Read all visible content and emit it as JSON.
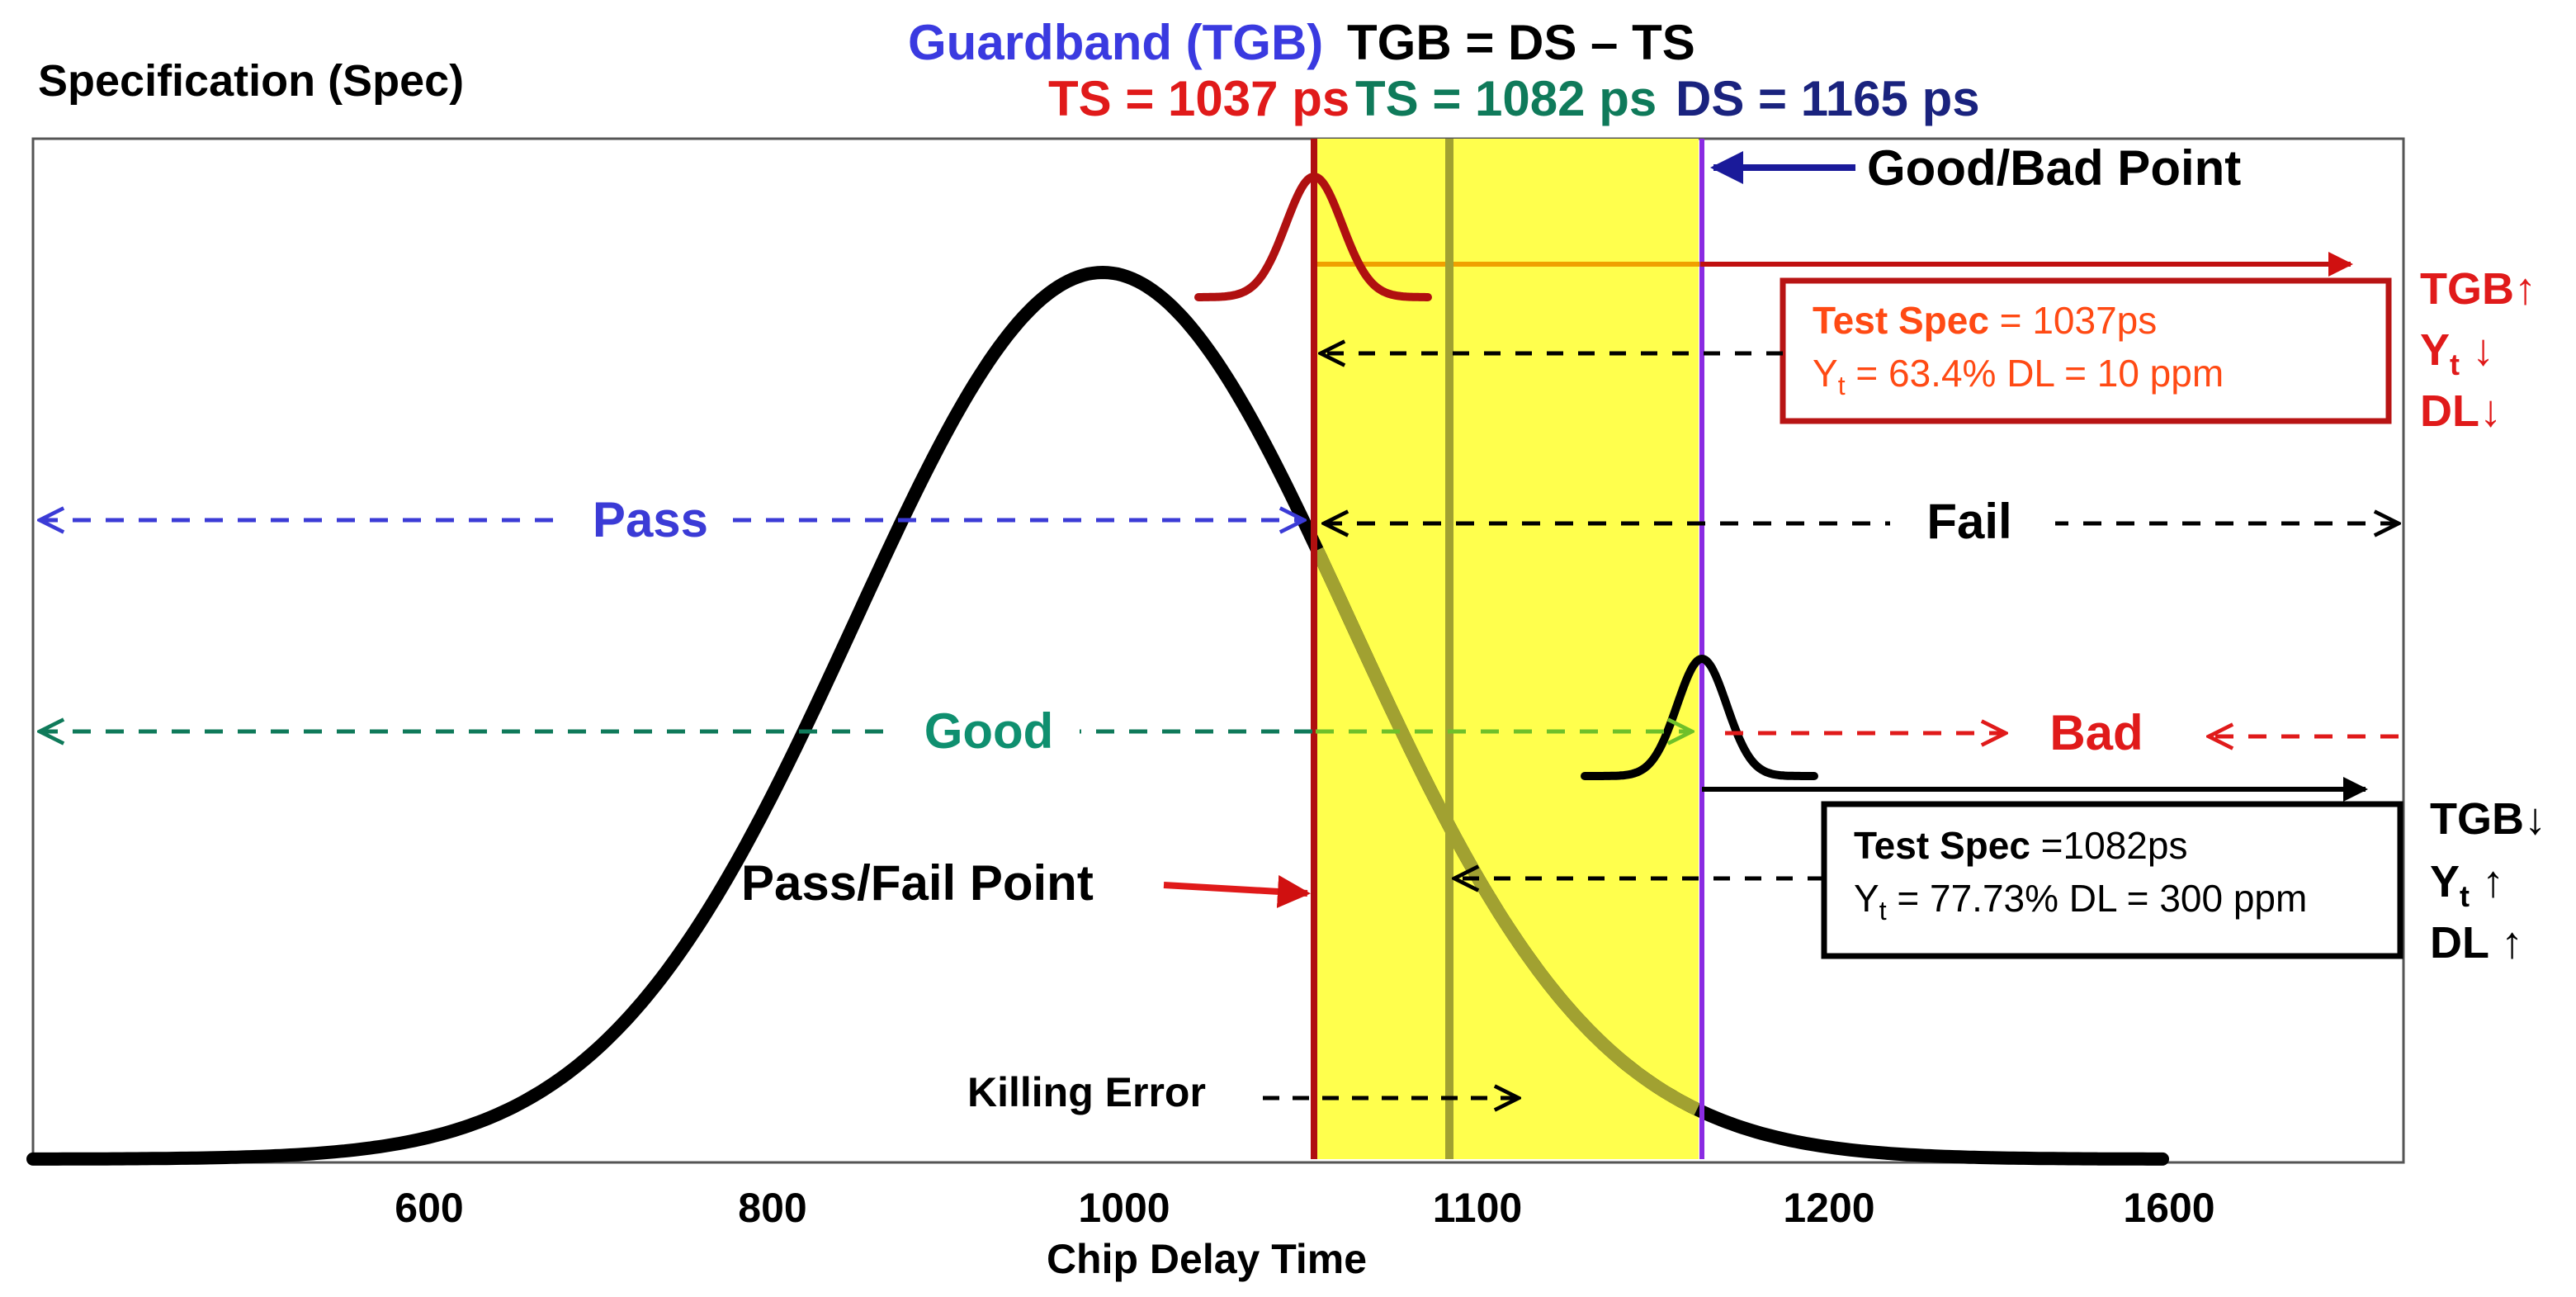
{
  "header": {
    "spec_label": "Specification (Spec)",
    "guardband_label": "Guardband (TGB)",
    "tgb_formula": "TGB = DS – TS",
    "ts1_label": "TS = 1037 ps",
    "ts2_label": "TS = 1082 ps",
    "ds_label": "DS = 1165 ps"
  },
  "labels": {
    "good_bad_point": "Good/Bad Point",
    "pass_fail_point": "Pass/Fail Point",
    "pass": "Pass",
    "fail": "Fail",
    "good": "Good",
    "bad": "Bad",
    "killing_error": "Killing Error"
  },
  "box_ts1037": {
    "spec_key": "Test Spec",
    "spec_value": " = 1037ps",
    "yield_sym": "Y",
    "yield_sub": "t",
    "yield_rest": " = 63.4%  DL = 10 ppm"
  },
  "box_ts1082": {
    "spec_key": "Test Spec",
    "spec_value": " =1082ps",
    "yield_sym": "Y",
    "yield_sub": "t",
    "yield_rest": " = 77.73% DL = 300 ppm"
  },
  "trend_ts1037": {
    "tgb": "TGB↑",
    "yt_sym": "Y",
    "yt_sub": "t",
    "yt_arrow": " ↓",
    "dl": "DL↓"
  },
  "trend_ts1082": {
    "tgb": "TGB↓",
    "yt_sym": "Y",
    "yt_sub": "t",
    "yt_arrow": " ↑",
    "dl": "DL ↑"
  },
  "x_axis": {
    "title": "Chip Delay Time",
    "ticks": [
      "600",
      "800",
      "1000",
      "1100",
      "1200",
      "1600"
    ]
  },
  "colors": {
    "pass": "#3b3bd6",
    "good": "#0f8f6f",
    "ts1037": "#e01a1a",
    "ts2": "#0f7a5a",
    "ds": "#1a237e",
    "guardband": "#3a3ae0",
    "guardband_fill": "#ffff4d",
    "box_red": "#b81414",
    "box_red_text": "#ff4a14",
    "trend_red": "#e01a1a"
  }
}
